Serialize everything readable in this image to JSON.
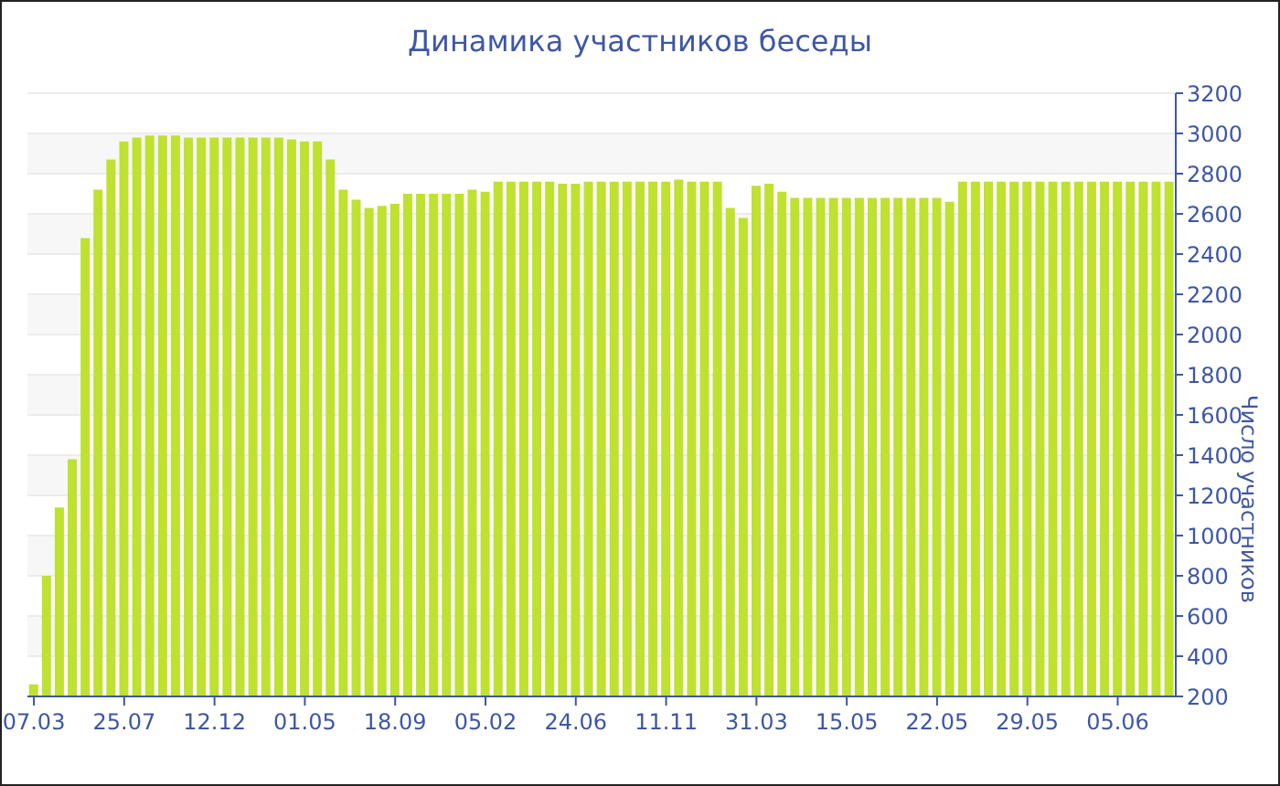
{
  "chart_data": {
    "type": "bar",
    "title": "Динамика участников беседы",
    "ylabel": "Число участников",
    "categories": [
      "07.03",
      null,
      null,
      null,
      null,
      null,
      null,
      "25.07",
      null,
      null,
      null,
      null,
      null,
      null,
      "12.12",
      null,
      null,
      null,
      null,
      null,
      null,
      "01.05",
      null,
      null,
      null,
      null,
      null,
      null,
      "18.09",
      null,
      null,
      null,
      null,
      null,
      null,
      "05.02",
      null,
      null,
      null,
      null,
      null,
      null,
      "24.06",
      null,
      null,
      null,
      null,
      null,
      null,
      "11.11",
      null,
      null,
      null,
      null,
      null,
      null,
      "31.03",
      null,
      null,
      null,
      null,
      null,
      null,
      "15.05",
      null,
      null,
      null,
      null,
      null,
      null,
      "22.05",
      null,
      null,
      null,
      null,
      null,
      null,
      "29.05",
      null,
      null,
      null,
      null,
      null,
      null,
      "05.06",
      null,
      null,
      null,
      null
    ],
    "values": [
      260,
      800,
      1140,
      1380,
      2480,
      2720,
      2870,
      2960,
      2980,
      2990,
      2990,
      2990,
      2980,
      2980,
      2980,
      2980,
      2980,
      2980,
      2980,
      2980,
      2970,
      2960,
      2960,
      2870,
      2720,
      2670,
      2630,
      2640,
      2650,
      2700,
      2700,
      2700,
      2700,
      2700,
      2720,
      2710,
      2760,
      2760,
      2760,
      2760,
      2760,
      2750,
      2750,
      2760,
      2760,
      2760,
      2760,
      2760,
      2760,
      2760,
      2770,
      2760,
      2760,
      2760,
      2630,
      2580,
      2740,
      2750,
      2710,
      2680,
      2680,
      2680,
      2680,
      2680,
      2680,
      2680,
      2680,
      2680,
      2680,
      2680,
      2680,
      2660,
      2760,
      2760,
      2760,
      2760,
      2760,
      2760,
      2760,
      2760,
      2760,
      2760,
      2760,
      2760,
      2760,
      2760,
      2760,
      2760,
      2760
    ],
    "color": "#bfe130",
    "ylim": [
      200,
      3200
    ],
    "yticks": [
      200,
      400,
      600,
      800,
      1000,
      1200,
      1400,
      1600,
      1800,
      2000,
      2200,
      2400,
      2600,
      2800,
      3000,
      3200
    ],
    "grid": "y"
  }
}
